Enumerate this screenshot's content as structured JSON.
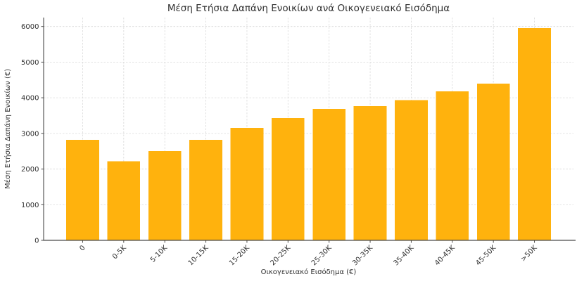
{
  "chart_data": {
    "type": "bar",
    "title": "Μέση Ετήσια Δαπάνη Ενοικίων ανά Οικογενειακό Εισόδημα",
    "xlabel": "Οικογενειακό Εισόδημα (€)",
    "ylabel": "Μέση Ετήσια Δαπάνη Ενοικίων (€)",
    "categories": [
      "0",
      "0-5K",
      "5-10K",
      "10-15K",
      "15-20K",
      "20-25K",
      "25-30K",
      "30-35K",
      "35-40K",
      "40-45K",
      "45-50K",
      ">50K"
    ],
    "values": [
      2820,
      2220,
      2500,
      2820,
      3150,
      3430,
      3690,
      3770,
      3930,
      4180,
      4400,
      5950
    ],
    "yticks": [
      0,
      1000,
      2000,
      3000,
      4000,
      5000,
      6000
    ],
    "ylim": [
      0,
      6250
    ],
    "bar_width_ratio": 0.8,
    "grid": true,
    "legend": null,
    "colors": {
      "bar": "#FFB20D",
      "grid": "#D9D9D9",
      "spine": "#4A4A4A",
      "tick": "#4A4A4A",
      "text": "#303030",
      "background": "#FFFFFF"
    }
  }
}
